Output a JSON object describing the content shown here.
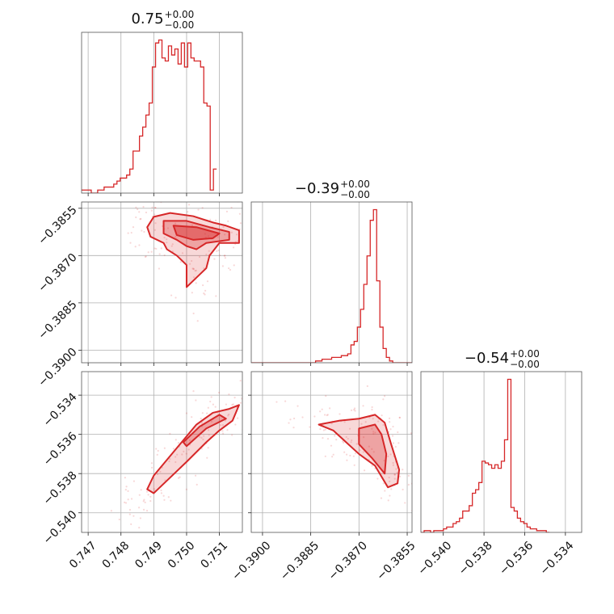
{
  "chart_data": {
    "type": "corner",
    "color": "#d62728",
    "parameters": [
      {
        "title": "0.75",
        "err_plus": "+0.00",
        "err_minus": "−0.00",
        "range": [
          0.7468,
          0.7517
        ],
        "ticks": [
          0.747,
          0.748,
          0.749,
          0.75,
          0.751
        ],
        "tick_labels": [
          "0.747",
          "0.748",
          "0.749",
          "0.750",
          "0.751"
        ]
      },
      {
        "title": "−0.39",
        "err_plus": "+0.00",
        "err_minus": "−0.00",
        "range": [
          -0.39035,
          -0.38535
        ],
        "ticks": [
          -0.39,
          -0.3885,
          -0.387,
          -0.3855
        ],
        "tick_labels": [
          "−0.3900",
          "−0.3885",
          "−0.3870",
          "−0.3855"
        ]
      },
      {
        "title": "−0.54",
        "err_plus": "+0.00",
        "err_minus": "−0.00",
        "range": [
          -0.5411,
          -0.5332
        ],
        "ticks": [
          -0.54,
          -0.538,
          -0.536,
          -0.534
        ],
        "tick_labels": [
          "−0.540",
          "−0.538",
          "−0.536",
          "−0.534"
        ]
      }
    ],
    "histograms": [
      {
        "param": 0,
        "edges_start": 0.7468,
        "bin_width": 9.8e-05,
        "counts": [
          1,
          1,
          1,
          0,
          0,
          1,
          1,
          2,
          2,
          2,
          3,
          4,
          5,
          5,
          6,
          8,
          14,
          14,
          19,
          22,
          26,
          30,
          42,
          50,
          51,
          45,
          44,
          49,
          46,
          48,
          43,
          50,
          42,
          50,
          45,
          44,
          44,
          42,
          30,
          29,
          1,
          8
        ]
      },
      {
        "param": 1,
        "edges_start": -0.39035,
        "bin_width": 0.0001,
        "counts": [
          0,
          0,
          0,
          0,
          0,
          0,
          0,
          0,
          0,
          0,
          0,
          0,
          0,
          0,
          0,
          0,
          0,
          0,
          0,
          0,
          1,
          1,
          2,
          2,
          2,
          3,
          3,
          3,
          4,
          4,
          5,
          10,
          12,
          20,
          30,
          44,
          60,
          80,
          86,
          46,
          20,
          8,
          3,
          1,
          0,
          0,
          0,
          0,
          0,
          0
        ]
      },
      {
        "param": 2,
        "edges_start": -0.5411,
        "bin_width": 0.000158,
        "counts": [
          0,
          1,
          1,
          0,
          1,
          1,
          1,
          2,
          3,
          3,
          5,
          6,
          8,
          12,
          12,
          15,
          22,
          24,
          28,
          40,
          39,
          38,
          36,
          38,
          36,
          40,
          52,
          86,
          14,
          12,
          8,
          6,
          5,
          3,
          2,
          2,
          1,
          1,
          1,
          0
        ]
      }
    ],
    "density_panels": [
      {
        "x_param": 0,
        "y_param": 1,
        "y_range": [
          -0.3904,
          -0.3853
        ],
        "y_ticks": [
          -0.39,
          -0.3885,
          -0.387,
          -0.3855
        ],
        "y_tick_labels": [
          "−0.3900",
          "−0.3885",
          "−0.3870",
          "−0.3855"
        ],
        "contours": [
          [
            [
              0.749,
              -0.38577
            ],
            [
              0.7495,
              -0.38565
            ],
            [
              0.7502,
              -0.38575
            ],
            [
              0.7508,
              -0.38595
            ],
            [
              0.7512,
              -0.38605
            ],
            [
              0.7516,
              -0.3862
            ],
            [
              0.7516,
              -0.3866
            ],
            [
              0.751,
              -0.3866
            ],
            [
              0.7507,
              -0.387
            ],
            [
              0.7506,
              -0.3874
            ],
            [
              0.7502,
              -0.3878
            ],
            [
              0.75,
              -0.388
            ],
            [
              0.75,
              -0.3873
            ],
            [
              0.7497,
              -0.387
            ],
            [
              0.7494,
              -0.3868
            ],
            [
              0.7493,
              -0.3866
            ],
            [
              0.7489,
              -0.3864
            ],
            [
              0.7488,
              -0.3861
            ],
            [
              0.749,
              -0.38577
            ]
          ],
          [
            [
              0.7493,
              -0.3859
            ],
            [
              0.75,
              -0.3859
            ],
            [
              0.7507,
              -0.3861
            ],
            [
              0.7513,
              -0.38625
            ],
            [
              0.7513,
              -0.3865
            ],
            [
              0.7506,
              -0.3866
            ],
            [
              0.7503,
              -0.3868
            ],
            [
              0.75,
              -0.3867
            ],
            [
              0.7497,
              -0.3865
            ],
            [
              0.7493,
              -0.3863
            ],
            [
              0.7493,
              -0.3859
            ]
          ],
          [
            [
              0.7496,
              -0.38605
            ],
            [
              0.7503,
              -0.3861
            ],
            [
              0.751,
              -0.3863
            ],
            [
              0.7508,
              -0.38645
            ],
            [
              0.7502,
              -0.3865
            ],
            [
              0.7497,
              -0.38635
            ],
            [
              0.7496,
              -0.38605
            ]
          ]
        ]
      },
      {
        "x_param": 0,
        "y_param": 2,
        "y_range": [
          -0.541,
          -0.5328
        ],
        "y_ticks": [
          -0.54,
          -0.538,
          -0.536,
          -0.534
        ],
        "y_tick_labels": [
          "−0.540",
          "−0.538",
          "−0.536",
          "−0.534"
        ],
        "contours": [
          [
            [
              0.749,
              -0.539
            ],
            [
              0.7495,
              -0.5382
            ],
            [
              0.75,
              -0.5374
            ],
            [
              0.7506,
              -0.5364
            ],
            [
              0.751,
              -0.5358
            ],
            [
              0.7514,
              -0.5353
            ],
            [
              0.7516,
              -0.5345
            ],
            [
              0.7513,
              -0.5347
            ],
            [
              0.7508,
              -0.5349
            ],
            [
              0.7503,
              -0.5355
            ],
            [
              0.7497,
              -0.5367
            ],
            [
              0.749,
              -0.5381
            ],
            [
              0.7488,
              -0.5388
            ],
            [
              0.749,
              -0.539
            ]
          ],
          [
            [
              0.75,
              -0.5366
            ],
            [
              0.7506,
              -0.5357
            ],
            [
              0.7512,
              -0.5352
            ],
            [
              0.751,
              -0.535
            ],
            [
              0.7504,
              -0.5356
            ],
            [
              0.7499,
              -0.5364
            ],
            [
              0.75,
              -0.5366
            ]
          ]
        ]
      },
      {
        "x_param": 1,
        "y_param": 2,
        "y_range": [
          -0.541,
          -0.5328
        ],
        "y_ticks": [
          -0.54,
          -0.538,
          -0.536,
          -0.534
        ],
        "y_tick_labels": [
          "−0.540",
          "−0.538",
          "−0.536",
          "−0.534"
        ],
        "contours": [
          [
            [
              -0.38825,
              -0.5355
            ],
            [
              -0.3876,
              -0.5353
            ],
            [
              -0.387,
              -0.5352
            ],
            [
              -0.3865,
              -0.535
            ],
            [
              -0.3862,
              -0.5354
            ],
            [
              -0.386,
              -0.5365
            ],
            [
              -0.38575,
              -0.5378
            ],
            [
              -0.3858,
              -0.5385
            ],
            [
              -0.3861,
              -0.5387
            ],
            [
              -0.3865,
              -0.5376
            ],
            [
              -0.387,
              -0.537
            ],
            [
              -0.3874,
              -0.5364
            ],
            [
              -0.3878,
              -0.5358
            ],
            [
              -0.38825,
              -0.5355
            ]
          ],
          [
            [
              -0.387,
              -0.5357
            ],
            [
              -0.3865,
              -0.5355
            ],
            [
              -0.3863,
              -0.536
            ],
            [
              -0.38615,
              -0.537
            ],
            [
              -0.3862,
              -0.538
            ],
            [
              -0.3866,
              -0.5372
            ],
            [
              -0.387,
              -0.5365
            ],
            [
              -0.387,
              -0.5357
            ]
          ]
        ]
      }
    ]
  }
}
